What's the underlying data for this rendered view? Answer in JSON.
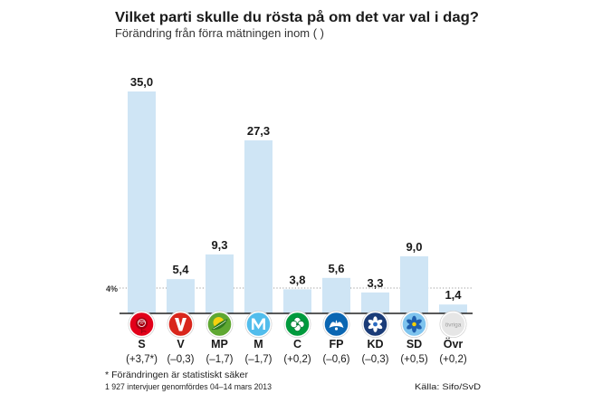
{
  "chart_data": {
    "type": "bar",
    "title": "Vilket parti skulle du rösta på om det var val i dag?",
    "subtitle": "Förändring från förra mätningen inom ( )",
    "categories": [
      "S",
      "V",
      "MP",
      "M",
      "C",
      "FP",
      "KD",
      "SD",
      "Övr"
    ],
    "values": [
      35.0,
      5.4,
      9.3,
      27.3,
      3.8,
      5.6,
      3.3,
      9.0,
      1.4
    ],
    "value_labels": [
      "35,0",
      "5,4",
      "9,3",
      "27,3",
      "3,8",
      "5,6",
      "3,3",
      "9,0",
      "1,4"
    ],
    "changes": [
      "(+3,7*)",
      "(–0,3)",
      "(–1,7)",
      "(–1,7)",
      "(+0,2)",
      "(–0,6)",
      "(–0,3)",
      "(+0,5)",
      "(+0,2)"
    ],
    "reference_line": {
      "value": 4,
      "label": "4%"
    },
    "ylim": [
      0,
      35
    ],
    "grid": false,
    "legend": "none",
    "xlabel": "",
    "ylabel": ""
  },
  "colors": {
    "bar": "#cfe5f5",
    "baseline": "#222222",
    "reference_line": "#9a9a9a"
  },
  "party_logos": [
    {
      "icon": "rose-icon",
      "color": "#e2001a"
    },
    {
      "icon": "v-letter-icon",
      "color": "#d9261c"
    },
    {
      "icon": "sun-leaf-icon",
      "color": "#5fa832"
    },
    {
      "icon": "m-letter-icon",
      "color": "#52bdec"
    },
    {
      "icon": "clover-icon",
      "color": "#009a3d"
    },
    {
      "icon": "cornflower-icon",
      "color": "#0a66b2"
    },
    {
      "icon": "white-flower-icon",
      "color": "#1b3c78"
    },
    {
      "icon": "blue-flower-icon",
      "color": "#7fc4ee"
    },
    {
      "icon": "ovriga-icon",
      "color": "#e6e6e6"
    }
  ],
  "logo_text": {
    "ovriga": "övriga"
  },
  "footer": {
    "footnote": "* Förändringen är statistiskt säker",
    "method": "1 927 intervjuer genomfördes 04–14 mars 2013",
    "source": "Källa: Sifo/SvD"
  }
}
